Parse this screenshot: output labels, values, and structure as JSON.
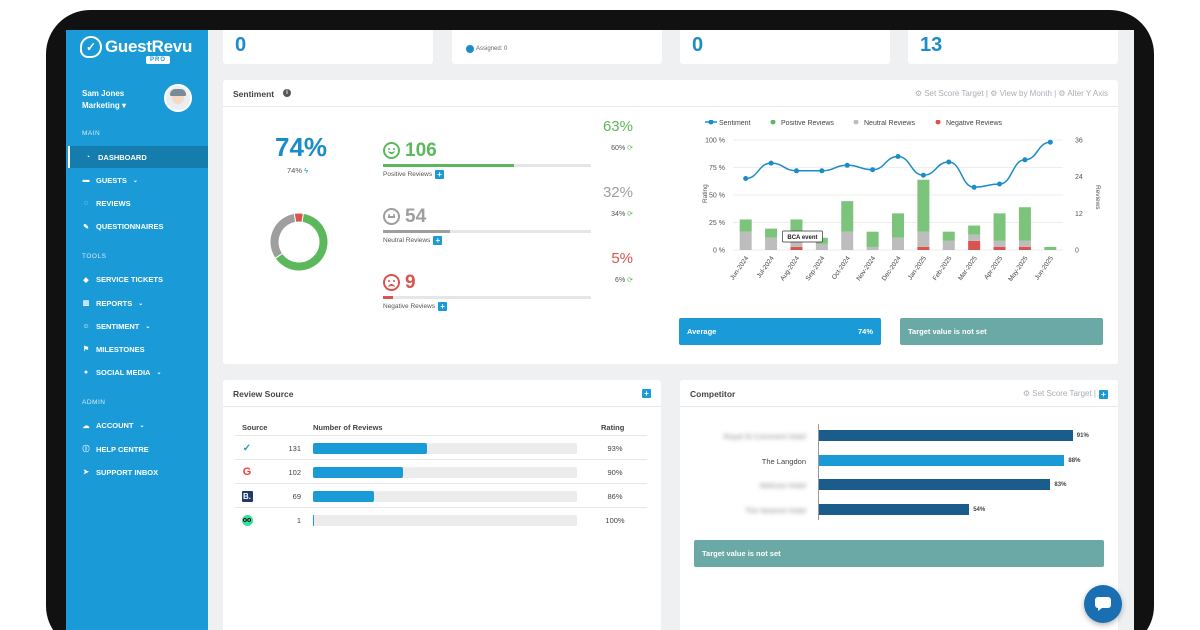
{
  "app": {
    "logo_text": "GuestRevu",
    "logo_badge": "PRO",
    "user_name": "Sam Jones",
    "user_role": "Marketing"
  },
  "sidebar": {
    "sections": [
      {
        "title": "MAIN",
        "items": [
          {
            "label": "Dashboard",
            "icon": "dashboard-icon",
            "active": true
          },
          {
            "label": "Guests",
            "icon": "bed-icon",
            "dropdown": true
          },
          {
            "label": "Reviews",
            "icon": "comment-icon"
          },
          {
            "label": "Questionnaires",
            "icon": "edit-icon"
          }
        ]
      },
      {
        "title": "TOOLS",
        "items": [
          {
            "label": "Service Tickets",
            "icon": "tag-icon"
          },
          {
            "label": "Reports",
            "icon": "bar-chart-icon",
            "dropdown": true
          },
          {
            "label": "Sentiment",
            "icon": "smile-icon",
            "dropdown": true
          },
          {
            "label": "Milestones",
            "icon": "flag-icon"
          },
          {
            "label": "Social Media",
            "icon": "globe-icon",
            "dropdown": true
          }
        ]
      },
      {
        "title": "ADMIN",
        "items": [
          {
            "label": "Account",
            "icon": "cloud-icon",
            "dropdown": true
          },
          {
            "label": "Help Centre",
            "icon": "info-icon"
          },
          {
            "label": "Support Inbox",
            "icon": "send-icon"
          }
        ]
      }
    ]
  },
  "top_stubs": {
    "first_value": "0",
    "assigned_label": "Assigned: 0",
    "third_value": "0",
    "fourth_value": "13"
  },
  "sentiment": {
    "title": "Sentiment",
    "tools": "⚙ Set Score Target  |  ⚙ View by Month  |  ⚙ Alter Y Axis",
    "overall_pct": "74%",
    "overall_small": "74%",
    "rows": [
      {
        "count": "106",
        "label": "Positive Reviews",
        "big_pct": "63%",
        "small_pct": "60%",
        "fraction": 0.63,
        "color": "#5cb85c"
      },
      {
        "count": "54",
        "label": "Neutral Reviews",
        "big_pct": "32%",
        "small_pct": "34%",
        "fraction": 0.32,
        "color": "#9e9e9e"
      },
      {
        "count": "9",
        "label": "Negative Reviews",
        "big_pct": "5%",
        "small_pct": "6%",
        "fraction": 0.05,
        "color": "#d9534f"
      }
    ],
    "average_label": "Average",
    "average_value": "74%",
    "target_label": "Target value is not set"
  },
  "chart_data": {
    "type": "bar",
    "legend": [
      "Sentiment",
      "Positive Reviews",
      "Neutral Reviews",
      "Negative Reviews"
    ],
    "categories": [
      "Jun-2024",
      "Jul-2024",
      "Aug-2024",
      "Sep-2024",
      "Oct-2024",
      "Nov-2024",
      "Dec-2024",
      "Jan-2025",
      "Feb-2025",
      "Mar-2025",
      "Apr-2025",
      "May-2025",
      "Jun-2025"
    ],
    "series": [
      {
        "name": "Positive Reviews",
        "values": [
          4,
          3,
          6,
          2,
          10,
          5,
          8,
          17,
          3,
          3,
          9,
          11,
          1
        ]
      },
      {
        "name": "Neutral Reviews",
        "values": [
          6,
          4,
          3,
          2,
          6,
          1,
          4,
          5,
          3,
          2,
          2,
          2,
          0
        ]
      },
      {
        "name": "Negative Reviews",
        "values": [
          0,
          0,
          1,
          0,
          0,
          0,
          0,
          1,
          0,
          3,
          1,
          1,
          0
        ]
      },
      {
        "name": "Sentiment",
        "values": [
          65,
          79,
          72,
          72,
          77,
          73,
          85,
          68,
          80,
          57,
          60,
          82,
          98
        ]
      }
    ],
    "left_axis": {
      "ticks": [
        "0 %",
        "25 %",
        "50 %",
        "75 %",
        "100 %"
      ],
      "label": "Rating",
      "range": [
        0,
        100
      ]
    },
    "right_axis": {
      "ticks": [
        "0",
        "12",
        "24",
        "36"
      ],
      "label": "Reviews",
      "range": [
        0,
        36
      ]
    },
    "annotation": "BCA event"
  },
  "review_source": {
    "title": "Review Source",
    "columns": [
      "Source",
      "Number of Reviews",
      "Rating"
    ],
    "rows": [
      {
        "icon": "guestrevu-icon",
        "count": "131",
        "fraction": 0.43,
        "rating": "93%"
      },
      {
        "icon": "google-icon",
        "count": "102",
        "fraction": 0.34,
        "rating": "90%"
      },
      {
        "icon": "booking-icon",
        "count": "69",
        "fraction": 0.23,
        "rating": "86%"
      },
      {
        "icon": "tripadvisor-icon",
        "count": "1",
        "fraction": 0.003,
        "rating": "100%"
      }
    ]
  },
  "competitor": {
    "title": "Competitor",
    "tools": "⚙ Set Score Target |",
    "rows": [
      {
        "name": "Royal St Comment Hotel",
        "value": "91%",
        "pct": 91,
        "color": "#1a5d8c",
        "blurred": true
      },
      {
        "name": "The Langdon",
        "value": "88%",
        "pct": 88,
        "color": "#1a9ad6",
        "blurred": false
      },
      {
        "name": "Melrose Hotel",
        "value": "83%",
        "pct": 83,
        "color": "#1a5d8c",
        "blurred": true
      },
      {
        "name": "The Nearest Hotel",
        "value": "54%",
        "pct": 54,
        "color": "#1a5d8c",
        "blurred": true
      }
    ],
    "target_label": "Target value is not set"
  }
}
